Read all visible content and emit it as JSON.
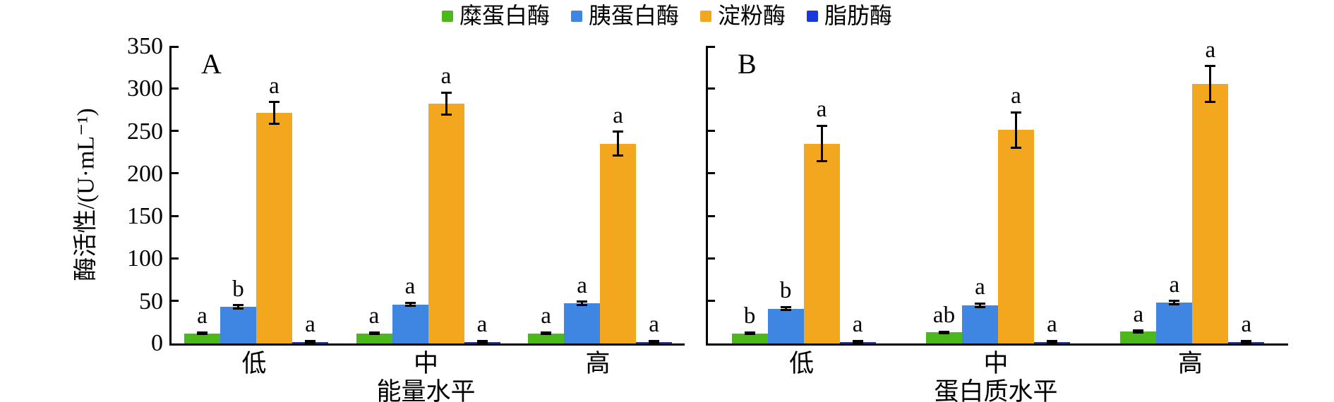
{
  "legend": {
    "items": [
      {
        "label": "糜蛋白酶",
        "color": "#4db81c"
      },
      {
        "label": "胰蛋白酶",
        "color": "#3f86e3"
      },
      {
        "label": "淀粉酶",
        "color": "#f3a71e"
      },
      {
        "label": "脂肪酶",
        "color": "#1838dd"
      }
    ]
  },
  "axis_colors": {
    "axis": "#000000",
    "error_bar": "#000000"
  },
  "chart_data": [
    {
      "type": "bar",
      "panel_label": "A",
      "title": "",
      "xlabel": "能量水平",
      "ylabel": "酶活性/(U·mL⁻¹)",
      "ylim": [
        0,
        350
      ],
      "ytick_step": 50,
      "ytick_labels_visible": true,
      "grid": false,
      "legend_position": "top-center",
      "categories": [
        "低",
        "中",
        "高"
      ],
      "series": [
        {
          "name": "糜蛋白酶",
          "color": "#4db81c",
          "values": [
            12,
            12,
            12
          ],
          "errors": [
            1,
            1,
            1
          ],
          "sig_letters": [
            "a",
            "a",
            "a"
          ]
        },
        {
          "name": "胰蛋白酶",
          "color": "#3f86e3",
          "values": [
            43,
            46,
            47
          ],
          "errors": [
            2,
            2,
            2
          ],
          "sig_letters": [
            "b",
            "a",
            "a"
          ]
        },
        {
          "name": "淀粉酶",
          "color": "#f3a71e",
          "values": [
            271,
            282,
            235
          ],
          "errors": [
            13,
            13,
            14
          ],
          "sig_letters": [
            "a",
            "a",
            "a"
          ]
        },
        {
          "name": "脂肪酶",
          "color": "#1838dd",
          "values": [
            2,
            2,
            2
          ],
          "errors": [
            1,
            1,
            1
          ],
          "sig_letters": [
            "a",
            "a",
            "a"
          ]
        }
      ]
    },
    {
      "type": "bar",
      "panel_label": "B",
      "title": "",
      "xlabel": "蛋白质水平",
      "ylabel": "酶活性/(U·mL⁻¹)",
      "ylim": [
        0,
        350
      ],
      "ytick_step": 50,
      "ytick_labels_visible": false,
      "grid": false,
      "legend_position": "top-center",
      "categories": [
        "低",
        "中",
        "高"
      ],
      "series": [
        {
          "name": "糜蛋白酶",
          "color": "#4db81c",
          "values": [
            12,
            13,
            14
          ],
          "errors": [
            1,
            1,
            1
          ],
          "sig_letters": [
            "b",
            "ab",
            "a"
          ]
        },
        {
          "name": "胰蛋白酶",
          "color": "#3f86e3",
          "values": [
            41,
            45,
            48
          ],
          "errors": [
            2,
            2,
            2
          ],
          "sig_letters": [
            "b",
            "a",
            "a"
          ]
        },
        {
          "name": "淀粉酶",
          "color": "#f3a71e",
          "values": [
            235,
            251,
            305
          ],
          "errors": [
            21,
            21,
            21
          ],
          "sig_letters": [
            "a",
            "a",
            "a"
          ]
        },
        {
          "name": "脂肪酶",
          "color": "#1838dd",
          "values": [
            2,
            2,
            2
          ],
          "errors": [
            1,
            1,
            1
          ],
          "sig_letters": [
            "a",
            "a",
            "a"
          ]
        }
      ]
    }
  ]
}
